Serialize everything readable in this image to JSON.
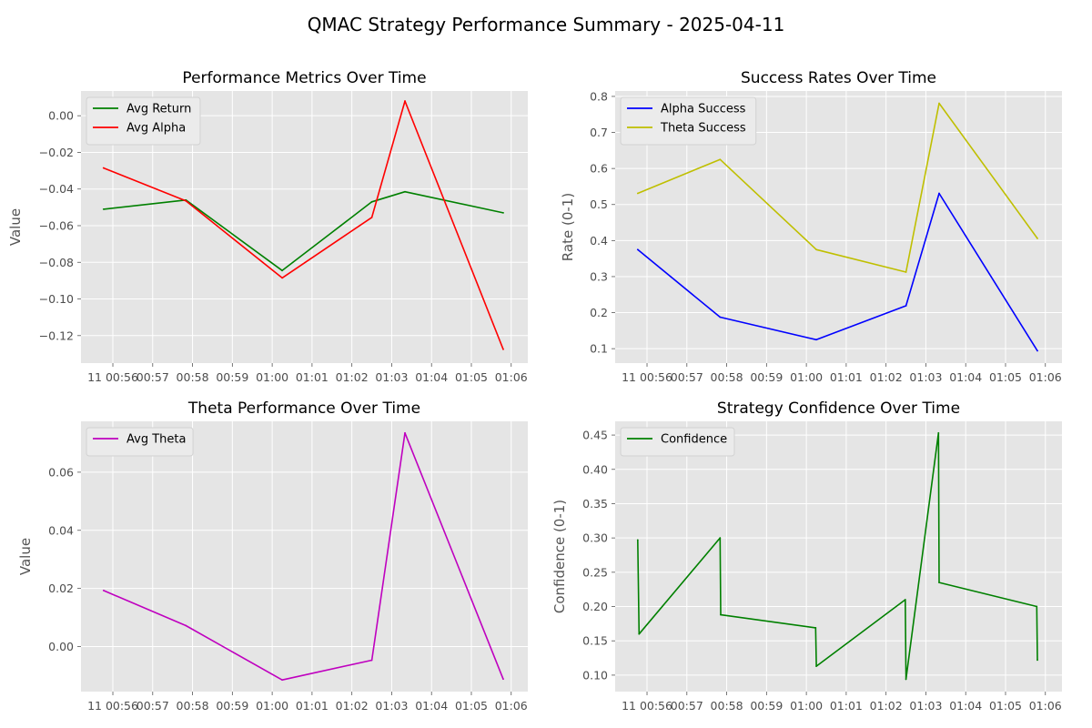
{
  "figure": {
    "title": "QMAC Strategy Performance Summary - 2025-04-11"
  },
  "x_tick_labels": [
    "11 00:56",
    "00:57",
    "00:58",
    "00:59",
    "01:00",
    "01:01",
    "01:02",
    "01:03",
    "01:04",
    "01:05",
    "01:06"
  ],
  "colors": {
    "plot_bg": "#e5e5e5",
    "grid": "#ffffff",
    "green": "#008000",
    "red": "#ff0000",
    "blue": "#0000ff",
    "olive": "#bfbf00",
    "magenta": "#bf00bf"
  },
  "chart_data": [
    {
      "type": "line",
      "title": "Performance Metrics Over Time",
      "xlabel": "",
      "ylabel": "Value",
      "ylim": [
        -0.135,
        0.0135
      ],
      "yticks": [
        0.0,
        -0.02,
        -0.04,
        -0.06,
        -0.08,
        -0.1,
        -0.12
      ],
      "ytick_labels": [
        "0.00",
        "−0.02",
        "−0.04",
        "−0.06",
        "−0.08",
        "−0.10",
        "−0.12"
      ],
      "legend": "top-left",
      "series": [
        {
          "name": "Avg Return",
          "color": "#008000",
          "x": [
            "00:55:46",
            "00:57:50",
            "01:00:15",
            "01:02:30",
            "01:03:20",
            "01:05:48"
          ],
          "y": [
            -0.051,
            -0.046,
            -0.0845,
            -0.047,
            -0.0415,
            -0.053
          ]
        },
        {
          "name": "Avg Alpha",
          "color": "#ff0000",
          "x": [
            "00:55:46",
            "00:57:50",
            "01:00:15",
            "01:02:30",
            "01:03:20",
            "01:05:48"
          ],
          "y": [
            -0.0285,
            -0.0465,
            -0.0885,
            -0.0555,
            0.008,
            -0.1275
          ]
        }
      ]
    },
    {
      "type": "line",
      "title": "Success Rates Over Time",
      "xlabel": "",
      "ylabel": "Rate (0-1)",
      "ylim": [
        0.06,
        0.815
      ],
      "yticks": [
        0.1,
        0.2,
        0.3,
        0.4,
        0.5,
        0.6,
        0.7,
        0.8
      ],
      "ytick_labels": [
        "0.1",
        "0.2",
        "0.3",
        "0.4",
        "0.5",
        "0.6",
        "0.7",
        "0.8"
      ],
      "legend": "top-left",
      "series": [
        {
          "name": "Alpha Success",
          "color": "#0000ff",
          "x": [
            "00:55:46",
            "00:57:50",
            "01:00:15",
            "01:02:30",
            "01:03:20",
            "01:05:48"
          ],
          "y": [
            0.375,
            0.1875,
            0.125,
            0.219,
            0.531,
            0.094
          ]
        },
        {
          "name": "Theta Success",
          "color": "#bfbf00",
          "x": [
            "00:55:46",
            "00:57:50",
            "01:00:15",
            "01:02:30",
            "01:03:20",
            "01:05:48"
          ],
          "y": [
            0.531,
            0.625,
            0.375,
            0.3125,
            0.781,
            0.406
          ]
        }
      ]
    },
    {
      "type": "line",
      "title": "Theta Performance Over Time",
      "xlabel": "",
      "ylabel": "Value",
      "ylim": [
        -0.0155,
        0.0775
      ],
      "yticks": [
        0.0,
        0.02,
        0.04,
        0.06
      ],
      "ytick_labels": [
        "0.00",
        "0.02",
        "0.04",
        "0.06"
      ],
      "legend": "top-left",
      "series": [
        {
          "name": "Avg Theta",
          "color": "#bf00bf",
          "x": [
            "00:55:46",
            "00:57:50",
            "01:00:15",
            "01:02:30",
            "01:03:20",
            "01:05:48"
          ],
          "y": [
            0.0193,
            0.0072,
            -0.0115,
            -0.0047,
            0.0735,
            -0.0112
          ]
        }
      ]
    },
    {
      "type": "line",
      "title": "Strategy Confidence Over Time",
      "xlabel": "",
      "ylabel": "Confidence (0-1)",
      "ylim": [
        0.076,
        0.47
      ],
      "yticks": [
        0.1,
        0.15,
        0.2,
        0.25,
        0.3,
        0.35,
        0.4,
        0.45
      ],
      "ytick_labels": [
        "0.10",
        "0.15",
        "0.20",
        "0.25",
        "0.30",
        "0.35",
        "0.40",
        "0.45"
      ],
      "legend": "top-left",
      "series": [
        {
          "name": "Confidence",
          "color": "#008000",
          "x": [
            "00:55:46",
            "00:55:48",
            "00:57:50",
            "00:57:51",
            "01:00:14",
            "01:00:15",
            "01:02:29",
            "01:02:30",
            "01:03:19",
            "01:03:20",
            "01:05:47",
            "01:05:48"
          ],
          "y": [
            0.297,
            0.16,
            0.3,
            0.188,
            0.169,
            0.113,
            0.21,
            0.094,
            0.453,
            0.235,
            0.2,
            0.122
          ]
        }
      ]
    }
  ]
}
